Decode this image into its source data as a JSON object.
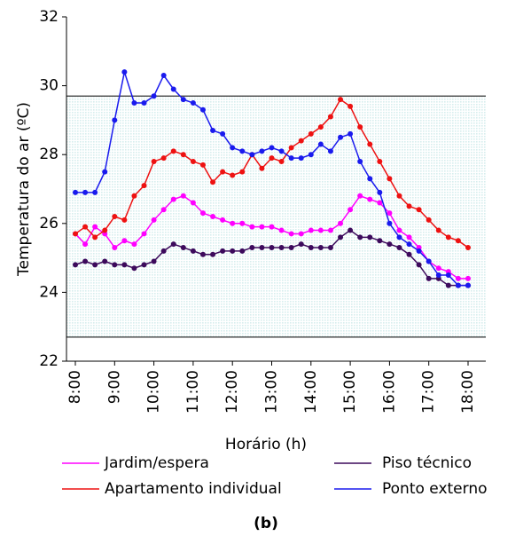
{
  "chart_data": {
    "type": "line",
    "caption": "(b)",
    "x_label": "Horário (h)",
    "y_label": "Temperatura do ar (ºC)",
    "x": [
      8,
      8.25,
      8.5,
      8.75,
      9,
      9.25,
      9.5,
      9.75,
      10,
      10.25,
      10.5,
      10.75,
      11,
      11.25,
      11.5,
      11.75,
      12,
      12.25,
      12.5,
      12.75,
      13,
      13.25,
      13.5,
      13.75,
      14,
      14.25,
      14.5,
      14.75,
      15,
      15.25,
      15.5,
      15.75,
      16,
      16.25,
      16.5,
      16.75,
      17,
      17.25,
      17.5,
      17.75,
      18
    ],
    "xlim": [
      8,
      18
    ],
    "xticks": [
      {
        "value": 8,
        "label": "8:00"
      },
      {
        "value": 9,
        "label": "9:00"
      },
      {
        "value": 10,
        "label": "10:00"
      },
      {
        "value": 11,
        "label": "11:00"
      },
      {
        "value": 12,
        "label": "12:00"
      },
      {
        "value": 13,
        "label": "13:00"
      },
      {
        "value": 14,
        "label": "14:00"
      },
      {
        "value": 15,
        "label": "15:00"
      },
      {
        "value": 16,
        "label": "16:00"
      },
      {
        "value": 17,
        "label": "17:00"
      },
      {
        "value": 18,
        "label": "18:00"
      }
    ],
    "ylim": [
      22,
      32
    ],
    "yticks": [
      22,
      24,
      26,
      28,
      30,
      32
    ],
    "band": [
      22.7,
      29.7
    ],
    "band_color": "#d6eeee",
    "series": [
      {
        "name": "Jardim/espera",
        "color": "#ff00ff",
        "values": [
          25.7,
          25.4,
          25.9,
          25.7,
          25.3,
          25.5,
          25.4,
          25.7,
          26.1,
          26.4,
          26.7,
          26.8,
          26.6,
          26.3,
          26.2,
          26.1,
          26.0,
          26.0,
          25.9,
          25.9,
          25.9,
          25.8,
          25.7,
          25.7,
          25.8,
          25.8,
          25.8,
          26.0,
          26.4,
          26.8,
          26.7,
          26.6,
          26.3,
          25.8,
          25.6,
          25.3,
          24.9,
          24.7,
          24.6,
          24.4,
          24.4
        ]
      },
      {
        "name": "Piso técnico",
        "color": "#3d0a5c",
        "values": [
          24.8,
          24.9,
          24.8,
          24.9,
          24.8,
          24.8,
          24.7,
          24.8,
          24.9,
          25.2,
          25.4,
          25.3,
          25.2,
          25.1,
          25.1,
          25.2,
          25.2,
          25.2,
          25.3,
          25.3,
          25.3,
          25.3,
          25.3,
          25.4,
          25.3,
          25.3,
          25.3,
          25.6,
          25.8,
          25.6,
          25.6,
          25.5,
          25.4,
          25.3,
          25.1,
          24.8,
          24.4,
          24.4,
          24.2,
          24.2,
          24.2
        ]
      },
      {
        "name": "Apartamento individual",
        "color": "#ee1111",
        "values": [
          25.7,
          25.9,
          25.6,
          25.8,
          26.2,
          26.1,
          26.8,
          27.1,
          27.8,
          27.9,
          28.1,
          28.0,
          27.8,
          27.7,
          27.2,
          27.5,
          27.4,
          27.5,
          28.0,
          27.6,
          27.9,
          27.8,
          28.2,
          28.4,
          28.6,
          28.8,
          29.1,
          29.6,
          29.4,
          28.8,
          28.3,
          27.8,
          27.3,
          26.8,
          26.5,
          26.4,
          26.1,
          25.8,
          25.6,
          25.5,
          25.3
        ]
      },
      {
        "name": "Ponto externo",
        "color": "#1a1aee",
        "values": [
          26.9,
          26.9,
          26.9,
          27.5,
          29.0,
          30.4,
          29.5,
          29.5,
          29.7,
          30.3,
          29.9,
          29.6,
          29.5,
          29.3,
          28.7,
          28.6,
          28.2,
          28.1,
          28.0,
          28.1,
          28.2,
          28.1,
          27.9,
          27.9,
          28.0,
          28.3,
          28.1,
          28.5,
          28.6,
          27.8,
          27.3,
          26.9,
          26.0,
          25.6,
          25.4,
          25.2,
          24.9,
          24.5,
          24.5,
          24.2,
          24.2
        ]
      }
    ]
  }
}
